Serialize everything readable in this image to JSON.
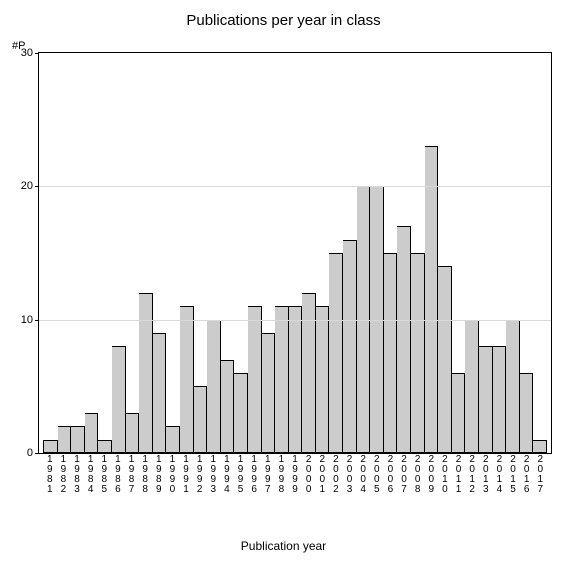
{
  "chart": {
    "type": "bar",
    "title": "Publications per year in class",
    "title_fontsize": 15,
    "y_axis_label": "#P",
    "x_axis_title": "Publication year",
    "x_axis_title_fontsize": 12,
    "label_fontsize": 11,
    "tick_fontsize": 10,
    "ylim": [
      0,
      30
    ],
    "yticks": [
      0,
      10,
      20,
      30
    ],
    "grid_color": "#d9d9d9",
    "axis_color": "#000000",
    "background_color": "#ffffff",
    "bar_fill": "#cccccc",
    "bar_stroke": "#000000",
    "categories": [
      "1981",
      "1982",
      "1983",
      "1984",
      "1985",
      "1986",
      "1987",
      "1988",
      "1989",
      "1990",
      "1991",
      "1992",
      "1993",
      "1994",
      "1995",
      "1996",
      "1997",
      "1998",
      "1999",
      "2000",
      "2001",
      "2002",
      "2003",
      "2004",
      "2005",
      "2006",
      "2007",
      "2008",
      "2009",
      "2010",
      "2011",
      "2012",
      "2013",
      "2014",
      "2015",
      "2016",
      "2017"
    ],
    "values": [
      1,
      2,
      2,
      3,
      1,
      8,
      3,
      12,
      9,
      2,
      11,
      5,
      10,
      7,
      6,
      11,
      9,
      11,
      11,
      12,
      11,
      15,
      16,
      20,
      20,
      15,
      17,
      15,
      23,
      14,
      6,
      10,
      8,
      8,
      10,
      6,
      1
    ]
  }
}
